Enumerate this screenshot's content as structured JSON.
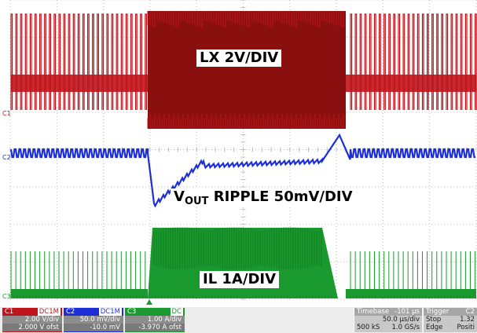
{
  "labels": {
    "lx": "LX 2V/DIV",
    "vout_main": "V",
    "vout_sub": "OUT",
    "vout_rest": "RIPPLE 50mV/DIV",
    "il": "IL 1A/DIV"
  },
  "markers": {
    "c1": "C1",
    "c2": "C2",
    "c3": "C3"
  },
  "channels": [
    {
      "name": "C1",
      "tag": "DC1M",
      "scale": "2.00 V/div",
      "offset": "2.000 V ofst",
      "color": "#c0141c"
    },
    {
      "name": "C2",
      "tag": "DC1M",
      "scale": "50.0 mV/div",
      "offset": "-10.0 mV",
      "color": "#1c2fd6"
    },
    {
      "name": "C3",
      "tag": "DC",
      "scale": "1.00 A/div",
      "offset": "-3.970 A ofst",
      "color": "#1a9a2e"
    }
  ],
  "timebase": {
    "title": "Timebase",
    "delay": "-101 µs",
    "per_div": "50.0 µs/div",
    "samples": "500 kS",
    "rate": "1.0 GS/s"
  },
  "trigger": {
    "title": "Trigger",
    "source": "C2",
    "mode": "Stop",
    "level": "1.32",
    "type": "Edge",
    "slope": "Positi"
  },
  "trace_colors": {
    "lx": "#c0141c",
    "lx_dark": "#8a0f0f",
    "vout": "#1c2fd6",
    "il": "#1a9a2e",
    "grid": "#bdbdbd"
  }
}
